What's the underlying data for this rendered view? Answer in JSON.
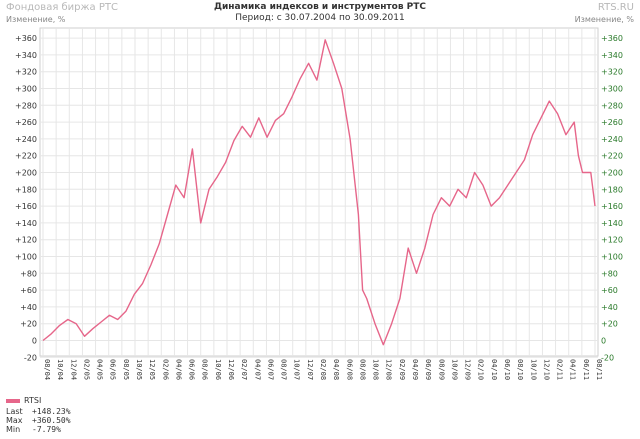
{
  "header": {
    "left_title": "Фондовая биржа РТС",
    "right_title": "RTS.RU",
    "left_sub": "Изменение, %",
    "right_sub": "Изменение, %",
    "title": "Динамика индексов и инструментов РТС",
    "period": "Период: с 30.07.2004 по 30.09.2011"
  },
  "stats": {
    "last_label": "Last",
    "last_value": "+148.23%",
    "max_label": "Max",
    "max_value": "+360.50%",
    "min_label": "Min",
    "min_value": "-7.79%"
  },
  "colors": {
    "line": "#e6668a",
    "grid": "#e6e6e6",
    "right_ticks": "#2a7a2a"
  },
  "chart_data": {
    "type": "line",
    "title": "Динамика индексов и инструментов РТС",
    "ylabel": "Изменение, %",
    "ylim": [
      -30,
      370
    ],
    "yticks": [
      "+360",
      "+340",
      "+320",
      "+300",
      "+280",
      "+260",
      "+240",
      "+220",
      "+200",
      "+180",
      "+160",
      "+140",
      "+120",
      "+100",
      "+80",
      "+60",
      "+40",
      "+20",
      "0",
      "-20"
    ],
    "ytick_values": [
      360,
      340,
      320,
      300,
      280,
      260,
      240,
      220,
      200,
      180,
      160,
      140,
      120,
      100,
      80,
      60,
      40,
      20,
      0,
      -20
    ],
    "xticks": [
      "08/04",
      "10/04",
      "12/04",
      "02/05",
      "04/05",
      "06/05",
      "08/05",
      "10/05",
      "12/05",
      "02/06",
      "04/06",
      "06/06",
      "08/06",
      "10/06",
      "12/06",
      "02/07",
      "04/07",
      "06/07",
      "08/07",
      "10/07",
      "12/07",
      "02/08",
      "04/08",
      "06/08",
      "08/08",
      "10/08",
      "12/08",
      "02/09",
      "04/09",
      "06/09",
      "08/09",
      "10/09",
      "12/09",
      "02/10",
      "04/10",
      "06/10",
      "08/10",
      "10/10",
      "12/10",
      "02/11",
      "04/11",
      "06/11",
      "08/11"
    ],
    "grid": true,
    "legend_position": "bottom-left",
    "series": [
      {
        "name": "RTSI",
        "points": [
          [
            0,
            0
          ],
          [
            1,
            8
          ],
          [
            2,
            18
          ],
          [
            3,
            25
          ],
          [
            4,
            20
          ],
          [
            5,
            5
          ],
          [
            6,
            14
          ],
          [
            7,
            22
          ],
          [
            8,
            30
          ],
          [
            9,
            25
          ],
          [
            10,
            35
          ],
          [
            11,
            55
          ],
          [
            12,
            68
          ],
          [
            13,
            90
          ],
          [
            14,
            115
          ],
          [
            15,
            150
          ],
          [
            16,
            185
          ],
          [
            17,
            170
          ],
          [
            18,
            228
          ],
          [
            19,
            140
          ],
          [
            20,
            180
          ],
          [
            21,
            195
          ],
          [
            22,
            212
          ],
          [
            23,
            238
          ],
          [
            24,
            255
          ],
          [
            25,
            242
          ],
          [
            26,
            265
          ],
          [
            27,
            242
          ],
          [
            28,
            262
          ],
          [
            29,
            270
          ],
          [
            30,
            290
          ],
          [
            31,
            312
          ],
          [
            32,
            330
          ],
          [
            33,
            310
          ],
          [
            34,
            358
          ],
          [
            35,
            330
          ],
          [
            36,
            300
          ],
          [
            37,
            240
          ],
          [
            38,
            150
          ],
          [
            38.5,
            60
          ],
          [
            39,
            50
          ],
          [
            40,
            20
          ],
          [
            41,
            -5
          ],
          [
            42,
            20
          ],
          [
            43,
            50
          ],
          [
            44,
            110
          ],
          [
            45,
            80
          ],
          [
            46,
            110
          ],
          [
            47,
            150
          ],
          [
            48,
            170
          ],
          [
            49,
            160
          ],
          [
            50,
            180
          ],
          [
            51,
            170
          ],
          [
            52,
            200
          ],
          [
            53,
            185
          ],
          [
            54,
            160
          ],
          [
            55,
            170
          ],
          [
            56,
            185
          ],
          [
            57,
            200
          ],
          [
            58,
            215
          ],
          [
            59,
            245
          ],
          [
            60,
            265
          ],
          [
            61,
            285
          ],
          [
            62,
            270
          ],
          [
            63,
            245
          ],
          [
            64,
            260
          ],
          [
            64.5,
            220
          ],
          [
            65,
            200
          ],
          [
            66,
            200
          ],
          [
            66.5,
            160
          ]
        ]
      }
    ]
  }
}
